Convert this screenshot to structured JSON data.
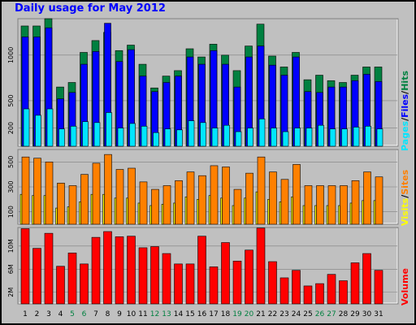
{
  "title": "Daily usage for May 2012",
  "colors": {
    "pages": "#00e5ff",
    "files": "#0000ff",
    "hits": "#008040",
    "visits": "#ffff00",
    "sites": "#ff8000",
    "volume": "#ff0000",
    "weekday_label": "#000000",
    "weekend_label": "#008040"
  },
  "chart_data": [
    {
      "type": "bar",
      "name": "top-panel",
      "legend": [
        "Pages",
        "/",
        "Files",
        "/",
        "Hits"
      ],
      "yticks": [
        "1000",
        "500",
        "200"
      ],
      "ytick_values": [
        1000,
        500,
        200
      ],
      "ylim": [
        0,
        1400
      ],
      "series": [
        {
          "name": "Hits",
          "values": [
            1320,
            1320,
            1400,
            650,
            700,
            1030,
            1160,
            1250,
            1050,
            1110,
            900,
            640,
            770,
            830,
            1070,
            980,
            1120,
            1000,
            830,
            1100,
            1340,
            990,
            870,
            1030,
            730,
            780,
            720,
            700,
            780,
            870,
            870
          ]
        },
        {
          "name": "Files",
          "values": [
            1200,
            1200,
            1300,
            520,
            590,
            900,
            1040,
            1350,
            930,
            1060,
            770,
            600,
            700,
            770,
            980,
            900,
            1050,
            900,
            650,
            980,
            1100,
            890,
            780,
            980,
            600,
            590,
            650,
            650,
            720,
            790,
            710
          ]
        },
        {
          "name": "Pages",
          "values": [
            410,
            340,
            410,
            190,
            220,
            270,
            260,
            370,
            200,
            250,
            220,
            150,
            190,
            180,
            280,
            260,
            200,
            230,
            160,
            200,
            300,
            200,
            160,
            200,
            200,
            230,
            190,
            190,
            210,
            220,
            190
          ]
        }
      ]
    },
    {
      "type": "bar",
      "name": "middle-panel",
      "legend": [
        "Visits",
        "/",
        "Sites"
      ],
      "yticks": [
        "500",
        "300",
        "100"
      ],
      "ytick_values": [
        500,
        300,
        100
      ],
      "ylim": [
        0,
        600
      ],
      "series": [
        {
          "name": "Sites",
          "values": [
            540,
            530,
            500,
            330,
            310,
            400,
            490,
            560,
            440,
            450,
            340,
            280,
            310,
            350,
            420,
            390,
            470,
            460,
            280,
            410,
            540,
            420,
            360,
            480,
            310,
            310,
            310,
            310,
            350,
            420,
            380
          ]
        },
        {
          "name": "Visits",
          "values": [
            240,
            230,
            230,
            130,
            140,
            180,
            240,
            240,
            210,
            210,
            170,
            150,
            160,
            170,
            220,
            200,
            230,
            210,
            150,
            210,
            260,
            200,
            180,
            220,
            150,
            150,
            150,
            150,
            170,
            190,
            190
          ]
        }
      ]
    },
    {
      "type": "bar",
      "name": "bottom-panel",
      "legend": [
        "Volume"
      ],
      "yticks": [
        "10M",
        "6M",
        "2M"
      ],
      "ytick_values": [
        10,
        6,
        2
      ],
      "ylim": [
        0,
        13.2
      ],
      "series": [
        {
          "name": "Volume",
          "values": [
            13.0,
            9.6,
            12.2,
            6.5,
            8.8,
            6.9,
            11.5,
            12.5,
            11.6,
            11.7,
            9.7,
            9.9,
            8.7,
            6.9,
            6.9,
            11.7,
            6.4,
            10.6,
            7.4,
            9.3,
            13.1,
            7.3,
            4.5,
            5.8,
            3.1,
            3.5,
            5.1,
            4.0,
            7.1,
            8.7,
            5.8
          ]
        }
      ]
    }
  ],
  "days": [
    "1",
    "2",
    "3",
    "4",
    "5",
    "6",
    "7",
    "8",
    "9",
    "10",
    "11",
    "12",
    "13",
    "14",
    "15",
    "16",
    "17",
    "18",
    "19",
    "20",
    "21",
    "22",
    "23",
    "24",
    "25",
    "26",
    "27",
    "28",
    "29",
    "30",
    "31"
  ],
  "weekend_days": [
    "5",
    "6",
    "12",
    "13",
    "19",
    "20",
    "26",
    "27"
  ]
}
